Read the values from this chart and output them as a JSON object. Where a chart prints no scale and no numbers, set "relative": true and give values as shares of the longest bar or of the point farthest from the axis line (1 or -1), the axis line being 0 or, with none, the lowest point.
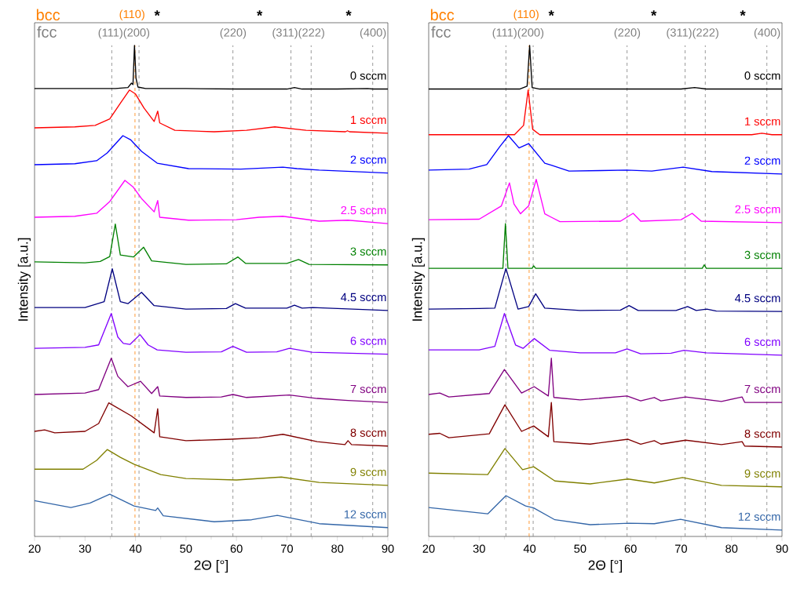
{
  "chart_data": [
    {
      "type": "line",
      "relative": true,
      "xlim": [
        20,
        90
      ],
      "xticks": [
        20,
        30,
        40,
        50,
        60,
        70,
        80,
        90
      ],
      "xlabel": "2Θ [°]",
      "ylabel": "Intensity [a.u.]",
      "ref_lines": [
        {
          "axis": "x",
          "value": 35.3,
          "color": "#808080",
          "line_style": "dashed"
        },
        {
          "axis": "x",
          "value": 40.7,
          "color": "#808080",
          "line_style": "dashed"
        },
        {
          "axis": "x",
          "value": 59.3,
          "color": "#808080",
          "line_style": "dashed"
        },
        {
          "axis": "x",
          "value": 70.8,
          "color": "#808080",
          "line_style": "dashed"
        },
        {
          "axis": "x",
          "value": 74.8,
          "color": "#808080",
          "line_style": "dashed"
        },
        {
          "axis": "x",
          "value": 87.0,
          "color": "#808080",
          "line_style": "dashed"
        },
        {
          "axis": "x",
          "value": 39.9,
          "color": "#ff8000",
          "line_style": "dashed"
        }
      ],
      "annotations": [
        "bcc",
        "fcc",
        "(110)",
        "*",
        "*",
        "*",
        "(111)(200)",
        "(220)",
        "(311)(222)",
        "(400)"
      ],
      "series": [
        {
          "name": "0 sccm",
          "color": "#000000",
          "x": [
            20,
            30,
            36,
            38.5,
            39.2,
            39.5,
            39.8,
            40.1,
            40.5,
            42,
            50,
            60,
            70,
            71.5,
            73,
            80,
            86,
            87,
            90
          ],
          "values": [
            0.912,
            0.912,
            0.912,
            0.914,
            0.923,
            0.92,
            1.0,
            0.933,
            0.915,
            0.912,
            0.912,
            0.911,
            0.911,
            0.914,
            0.911,
            0.911,
            0.912,
            0.911,
            0.911
          ]
        },
        {
          "name": "1 sccm",
          "color": "#ff0000",
          "x": [
            20,
            28,
            32,
            34.9,
            37,
            38.8,
            40,
            41.7,
            43.7,
            44.4,
            44.8,
            47.8,
            55.6,
            62,
            67.6,
            73.8,
            81.6,
            82,
            82.4,
            90
          ],
          "values": [
            0.832,
            0.834,
            0.837,
            0.85,
            0.882,
            0.909,
            0.901,
            0.872,
            0.845,
            0.866,
            0.842,
            0.827,
            0.824,
            0.827,
            0.834,
            0.827,
            0.824,
            0.826,
            0.824,
            0.821
          ]
        },
        {
          "name": "2 sccm",
          "color": "#0000ff",
          "x": [
            20,
            28,
            32.3,
            34.4,
            37.5,
            39,
            41.2,
            44.3,
            50.5,
            60.9,
            69.2,
            72,
            76.4,
            90
          ],
          "values": [
            0.757,
            0.759,
            0.765,
            0.781,
            0.816,
            0.808,
            0.784,
            0.76,
            0.749,
            0.748,
            0.752,
            0.749,
            0.746,
            0.74
          ]
        },
        {
          "name": "2.5 sccm",
          "color": "#ff00ff",
          "x": [
            20,
            28,
            32.3,
            34.9,
            37.9,
            39.5,
            41.2,
            43.7,
            44.4,
            44.8,
            50.5,
            60,
            64.5,
            69.2,
            76.4,
            82.1,
            90
          ],
          "values": [
            0.65,
            0.652,
            0.658,
            0.682,
            0.725,
            0.712,
            0.688,
            0.661,
            0.684,
            0.65,
            0.644,
            0.645,
            0.65,
            0.652,
            0.642,
            0.644,
            0.637
          ]
        },
        {
          "name": "3 sccm",
          "color": "#008000",
          "x": [
            20,
            30,
            33,
            34.9,
            36.0,
            37.0,
            39.6,
            41.6,
            43.2,
            50,
            58,
            60.3,
            61.8,
            70,
            72.3,
            74.4,
            90
          ],
          "values": [
            0.559,
            0.557,
            0.56,
            0.57,
            0.636,
            0.573,
            0.569,
            0.589,
            0.561,
            0.554,
            0.555,
            0.569,
            0.556,
            0.556,
            0.564,
            0.554,
            0.553
          ]
        },
        {
          "name": "4.5 sccm",
          "color": "#000080",
          "x": [
            20,
            30,
            33.8,
            35.4,
            37.0,
            38.5,
            41.2,
            43.7,
            50,
            58,
            59.8,
            61.8,
            70,
            71.5,
            73,
            75.1,
            90
          ],
          "values": [
            0.466,
            0.466,
            0.478,
            0.545,
            0.478,
            0.474,
            0.497,
            0.47,
            0.463,
            0.464,
            0.474,
            0.465,
            0.465,
            0.471,
            0.465,
            0.466,
            0.46
          ]
        },
        {
          "name": "6 sccm",
          "color": "#8000ff",
          "x": [
            20,
            30,
            32.7,
            35.2,
            36.5,
            37.6,
            38.9,
            40.9,
            42.5,
            44.3,
            50,
            57,
            59.3,
            62,
            68,
            70.5,
            75,
            90
          ],
          "values": [
            0.383,
            0.385,
            0.39,
            0.454,
            0.406,
            0.393,
            0.391,
            0.411,
            0.39,
            0.38,
            0.375,
            0.376,
            0.387,
            0.375,
            0.376,
            0.383,
            0.375,
            0.371
          ]
        },
        {
          "name": "7 sccm",
          "color": "#800080",
          "x": [
            20,
            30,
            32.7,
            35.2,
            36.5,
            38.5,
            41.0,
            43.2,
            44.4,
            44.8,
            50,
            57,
            59.3,
            62,
            70.5,
            76,
            82.1,
            90
          ],
          "values": [
            0.289,
            0.292,
            0.299,
            0.363,
            0.326,
            0.305,
            0.316,
            0.291,
            0.305,
            0.286,
            0.283,
            0.284,
            0.289,
            0.283,
            0.288,
            0.281,
            0.277,
            0.273
          ]
        },
        {
          "name": "8 sccm",
          "color": "#800000",
          "x": [
            20,
            22,
            24,
            30,
            32.7,
            34.7,
            39.1,
            43.7,
            44.4,
            44.8,
            50,
            59,
            64.5,
            69.2,
            76,
            81.5,
            82.1,
            82.8,
            90
          ],
          "values": [
            0.214,
            0.217,
            0.211,
            0.214,
            0.23,
            0.272,
            0.246,
            0.211,
            0.26,
            0.203,
            0.195,
            0.198,
            0.201,
            0.208,
            0.193,
            0.187,
            0.195,
            0.187,
            0.184
          ]
        },
        {
          "name": "9 sccm",
          "color": "#808000",
          "x": [
            20,
            29.6,
            32.3,
            34.4,
            37,
            39.7,
            45,
            50,
            60,
            68.9,
            76.4,
            90
          ],
          "values": [
            0.137,
            0.137,
            0.155,
            0.177,
            0.161,
            0.147,
            0.126,
            0.118,
            0.115,
            0.121,
            0.11,
            0.104
          ]
        },
        {
          "name": "12 sccm",
          "color": "#3366a8",
          "x": [
            20,
            27.2,
            31,
            34.9,
            39.7,
            44.0,
            44.4,
            45.5,
            55.6,
            63,
            68.1,
            76.4,
            90
          ],
          "values": [
            0.073,
            0.059,
            0.068,
            0.086,
            0.062,
            0.053,
            0.058,
            0.042,
            0.03,
            0.034,
            0.043,
            0.026,
            0.018
          ]
        }
      ]
    },
    {
      "type": "line",
      "relative": true,
      "xlim": [
        20,
        90
      ],
      "xticks": [
        20,
        30,
        40,
        50,
        60,
        70,
        80,
        90
      ],
      "xlabel": "2Θ [°]",
      "ylabel": "Intensity [a.u.]",
      "ref_lines": [
        {
          "axis": "x",
          "value": 35.3,
          "color": "#808080",
          "line_style": "dashed"
        },
        {
          "axis": "x",
          "value": 40.7,
          "color": "#808080",
          "line_style": "dashed"
        },
        {
          "axis": "x",
          "value": 59.3,
          "color": "#808080",
          "line_style": "dashed"
        },
        {
          "axis": "x",
          "value": 70.8,
          "color": "#808080",
          "line_style": "dashed"
        },
        {
          "axis": "x",
          "value": 74.8,
          "color": "#808080",
          "line_style": "dashed"
        },
        {
          "axis": "x",
          "value": 87.0,
          "color": "#808080",
          "line_style": "dashed"
        },
        {
          "axis": "x",
          "value": 39.9,
          "color": "#ff8000",
          "line_style": "dashed"
        }
      ],
      "annotations": [
        "bcc",
        "fcc",
        "(110)",
        "*",
        "*",
        "*",
        "(111)(200)",
        "(220)",
        "(311)(222)",
        "(400)"
      ],
      "series": [
        {
          "name": "0 sccm",
          "color": "#000000",
          "x": [
            20,
            38,
            39.5,
            40.0,
            40.5,
            42,
            70,
            72.7,
            75,
            90
          ],
          "values": [
            0.911,
            0.911,
            0.917,
            1.0,
            0.914,
            0.911,
            0.911,
            0.914,
            0.911,
            0.911
          ]
        },
        {
          "name": "1 sccm",
          "color": "#ff0000",
          "x": [
            20,
            37,
            38.8,
            39.7,
            40.6,
            42,
            84,
            86,
            88,
            90
          ],
          "values": [
            0.818,
            0.818,
            0.837,
            0.909,
            0.829,
            0.818,
            0.818,
            0.821,
            0.818,
            0.818
          ]
        },
        {
          "name": "2 sccm",
          "color": "#0000ff",
          "x": [
            20,
            28,
            31.5,
            34.1,
            35.8,
            37.9,
            39.8,
            43.0,
            44.3,
            47.8,
            54,
            59.2,
            64.2,
            70.4,
            76.1,
            90
          ],
          "values": [
            0.746,
            0.748,
            0.757,
            0.794,
            0.816,
            0.791,
            0.8,
            0.76,
            0.756,
            0.744,
            0.745,
            0.746,
            0.744,
            0.752,
            0.743,
            0.738
          ]
        },
        {
          "name": "2.5 sccm",
          "color": "#ff00ff",
          "x": [
            20,
            30,
            34.4,
            36.0,
            36.9,
            38.2,
            39.8,
            41.3,
            43.0,
            44.3,
            46,
            58,
            60.5,
            62,
            70,
            72.2,
            74,
            90
          ],
          "values": [
            0.645,
            0.646,
            0.673,
            0.72,
            0.677,
            0.657,
            0.673,
            0.727,
            0.657,
            0.65,
            0.641,
            0.642,
            0.658,
            0.642,
            0.645,
            0.658,
            0.642,
            0.639
          ]
        },
        {
          "name": "3 sccm",
          "color": "#008000",
          "x": [
            20,
            34.7,
            35.2,
            35.7,
            40.5,
            40.8,
            41.2,
            74.2,
            74.6,
            75,
            90
          ],
          "values": [
            0.546,
            0.546,
            0.637,
            0.546,
            0.546,
            0.551,
            0.546,
            0.546,
            0.553,
            0.546,
            0.546
          ]
        },
        {
          "name": "4.5 sccm",
          "color": "#000080",
          "x": [
            20,
            30,
            33.1,
            35.3,
            37.7,
            39.8,
            41.2,
            43.0,
            50,
            58,
            59.7,
            61.5,
            69,
            71.3,
            73,
            75.1,
            77,
            90
          ],
          "values": [
            0.463,
            0.464,
            0.465,
            0.546,
            0.463,
            0.468,
            0.494,
            0.465,
            0.46,
            0.461,
            0.47,
            0.46,
            0.46,
            0.468,
            0.46,
            0.463,
            0.459,
            0.458
          ]
        },
        {
          "name": "6 sccm",
          "color": "#8000ff",
          "x": [
            20,
            30,
            33.1,
            35.0,
            37.2,
            38.7,
            40.9,
            44.0,
            50,
            57,
            59.3,
            62,
            68,
            70.6,
            75,
            90
          ],
          "values": [
            0.38,
            0.38,
            0.387,
            0.454,
            0.39,
            0.383,
            0.403,
            0.379,
            0.374,
            0.374,
            0.382,
            0.372,
            0.373,
            0.379,
            0.374,
            0.369
          ]
        },
        {
          "name": "7 sccm",
          "color": "#800080",
          "x": [
            20,
            22.2,
            24,
            32,
            35.0,
            38.4,
            40.9,
            43.7,
            44.3,
            44.8,
            50,
            59.3,
            62,
            64.7,
            66,
            70.9,
            78,
            82.1,
            82.6,
            90
          ],
          "values": [
            0.289,
            0.292,
            0.284,
            0.291,
            0.34,
            0.292,
            0.305,
            0.286,
            0.363,
            0.283,
            0.278,
            0.286,
            0.276,
            0.283,
            0.276,
            0.284,
            0.275,
            0.284,
            0.273,
            0.273
          ]
        },
        {
          "name": "8 sccm",
          "color": "#800000",
          "x": [
            20,
            22.2,
            24,
            32,
            35.1,
            38.4,
            40.8,
            43.7,
            44.3,
            44.8,
            52,
            59.5,
            62,
            64.7,
            66,
            70.9,
            78,
            82.1,
            82.6,
            90
          ],
          "values": [
            0.208,
            0.21,
            0.201,
            0.209,
            0.268,
            0.214,
            0.225,
            0.203,
            0.273,
            0.193,
            0.188,
            0.198,
            0.188,
            0.195,
            0.188,
            0.196,
            0.187,
            0.193,
            0.184,
            0.182
          ]
        },
        {
          "name": "9 sccm",
          "color": "#808000",
          "x": [
            20,
            31.7,
            35.1,
            38.6,
            40.8,
            45,
            52,
            59.5,
            64.7,
            70.3,
            78,
            90
          ],
          "values": [
            0.129,
            0.126,
            0.179,
            0.136,
            0.142,
            0.113,
            0.107,
            0.117,
            0.109,
            0.12,
            0.104,
            0.101
          ]
        },
        {
          "name": "12 sccm",
          "color": "#3366a8",
          "x": [
            20,
            31.7,
            35.3,
            39.2,
            40.8,
            45,
            52,
            59.7,
            64.7,
            69.9,
            78,
            90
          ],
          "values": [
            0.059,
            0.046,
            0.083,
            0.062,
            0.058,
            0.034,
            0.024,
            0.027,
            0.026,
            0.035,
            0.018,
            0.013
          ]
        }
      ]
    }
  ]
}
